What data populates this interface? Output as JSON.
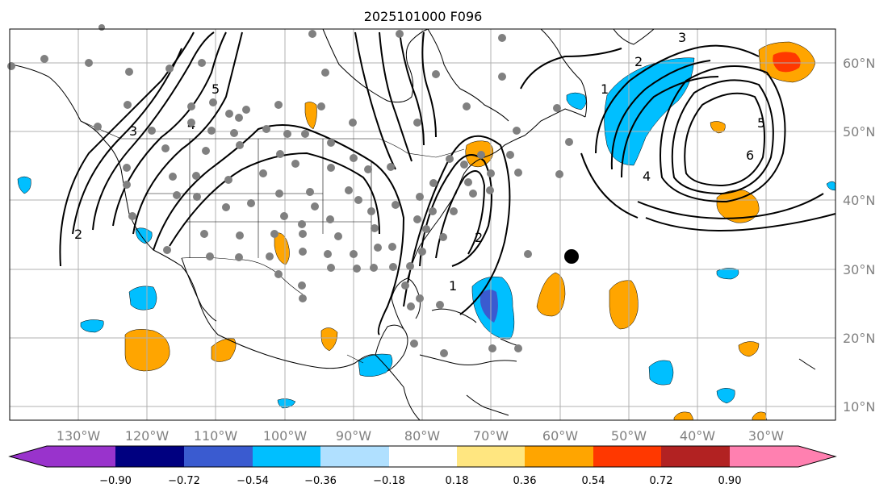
{
  "title": "2025101000 F096",
  "lon_labels": [
    "130°W",
    "120°W",
    "110°W",
    "100°W",
    "90°W",
    "80°W",
    "70°W",
    "60°W",
    "50°W",
    "40°W",
    "30°W"
  ],
  "lat_labels": [
    "60°N",
    "50°N",
    "40°N",
    "30°N",
    "20°N",
    "10°N"
  ],
  "colorbar": {
    "ticks": [
      "−0.90",
      "−0.72",
      "−0.54",
      "−0.36",
      "−0.18",
      "0.18",
      "0.36",
      "0.54",
      "0.72",
      "0.90"
    ],
    "colors": [
      "#9933cc",
      "#000080",
      "#3a5bd0",
      "#00bfff",
      "#b0e0ff",
      "#ffffff",
      "#ffe680",
      "#ffa500",
      "#ff3800",
      "#b22222",
      "#ff80b0"
    ]
  },
  "contour_labels": [
    "1",
    "2",
    "3",
    "4",
    "5",
    "6"
  ],
  "colors": {
    "positive_anomaly": "#ffa500",
    "negative_anomaly": "#00bfff",
    "strong_negative": "#3a5bd0",
    "strong_positive": "#ff3800",
    "stations": "#808080",
    "marker": "#000000"
  }
}
